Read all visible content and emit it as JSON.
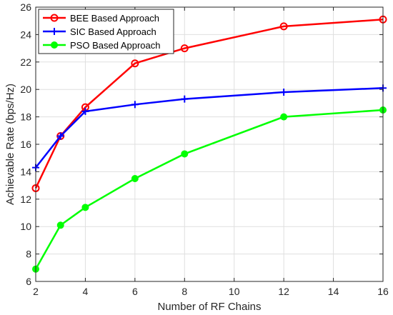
{
  "chart_data": {
    "type": "line",
    "title": "",
    "xlabel": "Number of RF Chains",
    "ylabel": "Achievable Rate (bps/Hz)",
    "xlim": [
      2,
      16
    ],
    "ylim": [
      6,
      26
    ],
    "xticks": [
      2,
      4,
      6,
      8,
      10,
      12,
      14,
      16
    ],
    "yticks": [
      6,
      8,
      10,
      12,
      14,
      16,
      18,
      20,
      22,
      24,
      26
    ],
    "grid": true,
    "legend_position": "top-left",
    "series": [
      {
        "name": "BEE Based Approach",
        "color": "#ff0000",
        "marker": "circle-open",
        "x": [
          2,
          3,
          4,
          6,
          8,
          12,
          16
        ],
        "y": [
          12.8,
          16.6,
          18.7,
          21.9,
          23.0,
          24.6,
          25.1
        ]
      },
      {
        "name": "SIC Based Approach",
        "color": "#0000ff",
        "marker": "plus",
        "x": [
          2,
          3,
          4,
          6,
          8,
          12,
          16
        ],
        "y": [
          14.3,
          16.6,
          18.4,
          18.9,
          19.3,
          19.8,
          20.1
        ]
      },
      {
        "name": "PSO Based Approach",
        "color": "#00ff00",
        "marker": "circle-filled",
        "x": [
          2,
          3,
          4,
          6,
          8,
          12,
          16
        ],
        "y": [
          6.9,
          10.1,
          11.4,
          13.5,
          15.3,
          18.0,
          18.5
        ]
      }
    ]
  }
}
